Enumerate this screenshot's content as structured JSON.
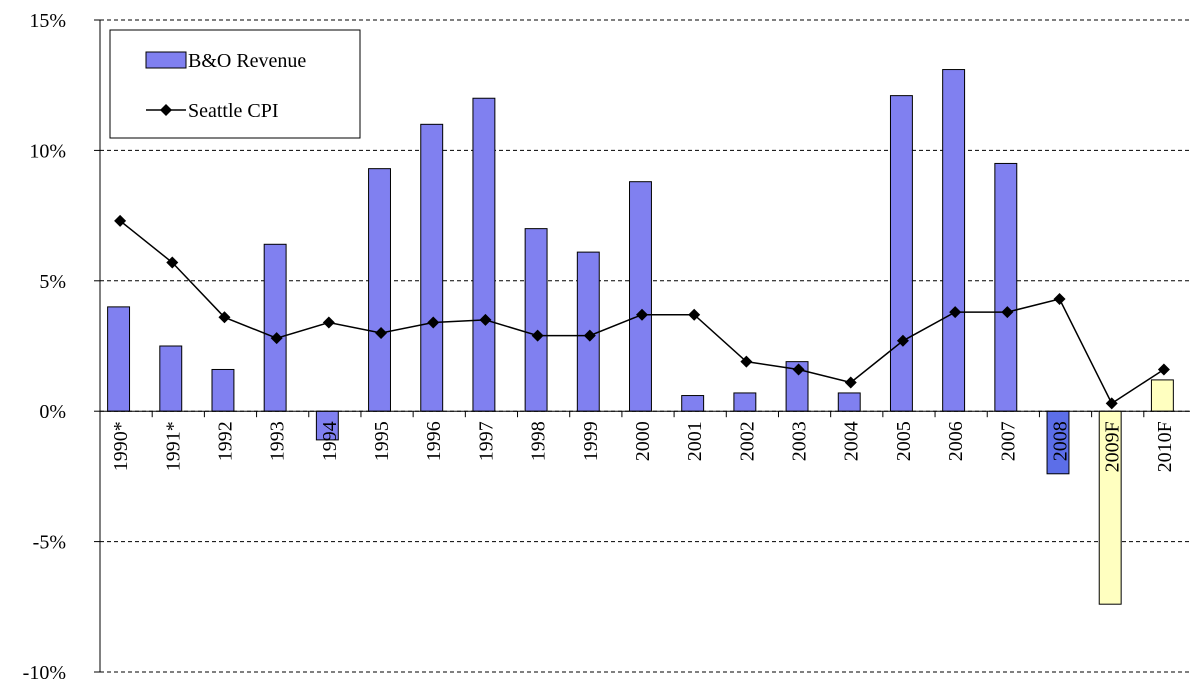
{
  "chart_data": {
    "type": "bar-line",
    "categories": [
      "1990*",
      "1991*",
      "1992",
      "1993",
      "1994",
      "1995",
      "1996",
      "1997",
      "1998",
      "1999",
      "2000",
      "2001",
      "2002",
      "2003",
      "2004",
      "2005",
      "2006",
      "2007",
      "2008",
      "2009F",
      "2010F"
    ],
    "series": [
      {
        "name": "B&O Revenue",
        "type": "bar",
        "color": "#8080f0",
        "colors": [
          "#8080f0",
          "#8080f0",
          "#8080f0",
          "#8080f0",
          "#8080f0",
          "#8080f0",
          "#8080f0",
          "#8080f0",
          "#8080f0",
          "#8080f0",
          "#8080f0",
          "#8080f0",
          "#8080f0",
          "#8080f0",
          "#8080f0",
          "#8080f0",
          "#8080f0",
          "#8080f0",
          "#5c6ee8",
          "#ffffc0",
          "#ffffc0"
        ],
        "values": [
          4.0,
          2.5,
          1.6,
          6.4,
          -1.1,
          9.3,
          11.0,
          12.0,
          7.0,
          6.1,
          8.8,
          0.6,
          0.7,
          1.9,
          0.7,
          12.1,
          13.1,
          9.5,
          -2.4,
          -7.4,
          1.2
        ]
      },
      {
        "name": "Seattle CPI",
        "type": "line",
        "color": "#000000",
        "values": [
          7.3,
          5.7,
          3.6,
          2.8,
          3.4,
          3.0,
          3.4,
          3.5,
          2.9,
          2.9,
          3.7,
          3.7,
          1.9,
          1.6,
          1.1,
          2.7,
          3.8,
          3.8,
          4.3,
          0.3,
          1.6
        ]
      }
    ],
    "ylim": [
      -10,
      15
    ],
    "yticks": [
      {
        "value": -10,
        "label": "-10%"
      },
      {
        "value": -5,
        "label": "-5%"
      },
      {
        "value": 0,
        "label": "0%"
      },
      {
        "value": 5,
        "label": "5%"
      },
      {
        "value": 10,
        "label": "10%"
      },
      {
        "value": 15,
        "label": "15%"
      }
    ],
    "grid": true,
    "legend": "top-left"
  }
}
